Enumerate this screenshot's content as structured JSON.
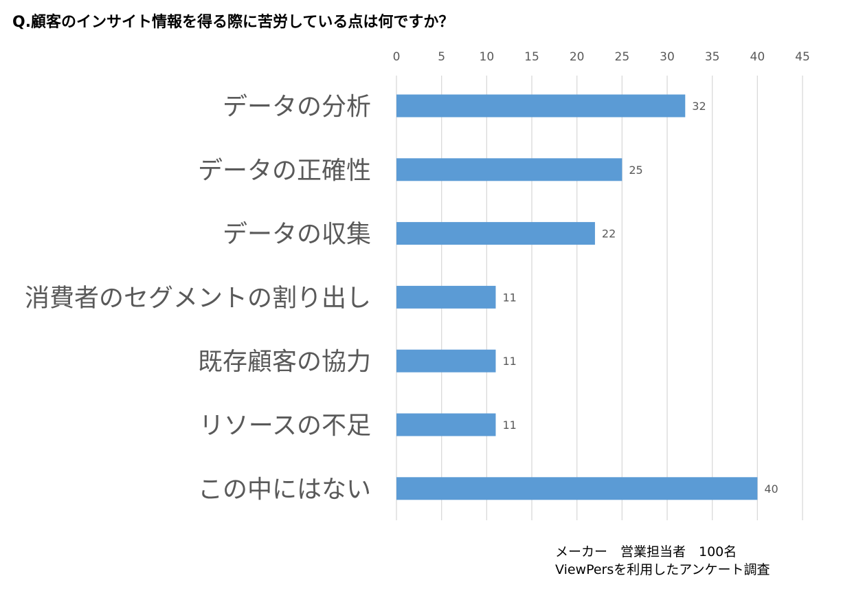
{
  "title": "Q.顧客のインサイト情報を得る際に苦労している点は何ですか？",
  "chart_data": {
    "type": "bar",
    "orientation": "horizontal",
    "categories": [
      "データの分析",
      "データの正確性",
      "データの収集",
      "消費者のセグメントの割り出し",
      "既存顧客の協力",
      "リソースの不足",
      "この中にはない"
    ],
    "values": [
      32,
      25,
      22,
      11,
      11,
      11,
      40
    ],
    "xlim": [
      0,
      45
    ],
    "xticks": [
      0,
      5,
      10,
      15,
      20,
      25,
      30,
      35,
      40,
      45
    ],
    "x_axis_position": "top",
    "grid": true,
    "data_labels": true,
    "bar_color": "#5B9BD5"
  },
  "note": {
    "line1": "メーカー　営業担当者　100名",
    "line2": "ViewPersを利用したアンケート調査"
  }
}
